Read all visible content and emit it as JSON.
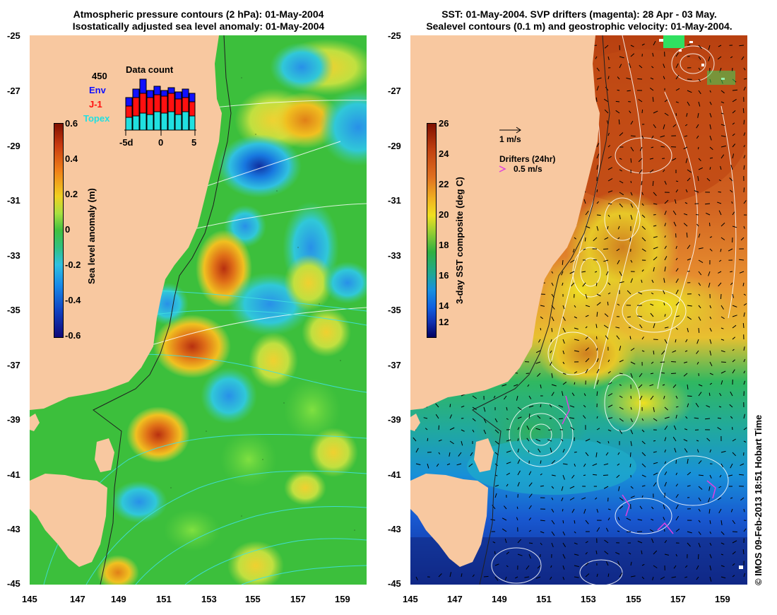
{
  "left_panel": {
    "title_line1": "Atmospheric pressure contours (2 hPa): 01-May-2004",
    "title_line2": "Isostatically adjusted sea level anomaly: 01-May-2004",
    "colorbar_label": "Sea level anomaly (m)",
    "colorbar_ticks": [
      "0.6",
      "0.4",
      "0.2",
      "0",
      "-0.2",
      "-0.4",
      "-0.6"
    ],
    "inset": {
      "title": "Data count",
      "max_label": "450",
      "series": [
        {
          "name": "Env",
          "color": "#1010ff"
        },
        {
          "name": "J-1",
          "color": "#ff1010"
        },
        {
          "name": "Topex",
          "color": "#20e0e0"
        }
      ],
      "x_ticks": [
        "-5d",
        "0",
        "5"
      ]
    }
  },
  "right_panel": {
    "title_line1": "SST: 01-May-2004. SVP drifters (magenta): 28 Apr - 03 May.",
    "title_line2": "Sealevel contours (0.1 m) and geostrophic velocity: 01-May-2004.",
    "colorbar_label": "3-day SST composite (deg C)",
    "colorbar_ticks": [
      "26",
      "24",
      "22",
      "20",
      "18",
      "16",
      "14",
      "12"
    ],
    "velocity_scale_label": "1 m/s",
    "drifter_legend_title": "Drifters (24hr)",
    "drifter_legend_value": "0.5 m/s"
  },
  "axes": {
    "lat_ticks": [
      "-25",
      "-27",
      "-29",
      "-31",
      "-33",
      "-35",
      "-37",
      "-39",
      "-41",
      "-43",
      "-45"
    ],
    "lon_ticks": [
      "145",
      "147",
      "149",
      "151",
      "153",
      "155",
      "157",
      "159"
    ]
  },
  "credit": "© IMOS 09-Feb-2013 18:51 Hobart Time",
  "colors": {
    "land": "#f8c8a0",
    "drifter": "#e040e0"
  }
}
